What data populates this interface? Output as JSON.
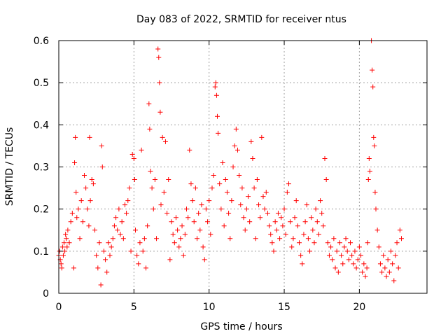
{
  "chart_data": {
    "type": "scatter",
    "title": "Day 083 of 2022, SRMTID for receiver ntus",
    "xlabel": "GPS time / hours",
    "ylabel": "SRMTID / TECUs",
    "xlim": [
      0,
      24.5
    ],
    "ylim": [
      0,
      0.6
    ],
    "x_ticks": [
      0,
      5,
      10,
      15,
      20
    ],
    "y_ticks": [
      0,
      0.1,
      0.2,
      0.3,
      0.4,
      0.5,
      0.6
    ],
    "x_tick_labels": [
      "0",
      "5",
      "10",
      "15",
      "20"
    ],
    "y_tick_labels": [
      "0",
      "0.1",
      "0.2",
      "0.3",
      "0.4",
      "0.5",
      "0.6"
    ],
    "grid": true,
    "marker": "+",
    "color": "#ff0000",
    "series": [
      {
        "name": "SRMTID",
        "points": [
          [
            0.0,
            0.09
          ],
          [
            0.05,
            0.1
          ],
          [
            0.1,
            0.08
          ],
          [
            0.15,
            0.07
          ],
          [
            0.2,
            0.06
          ],
          [
            0.25,
            0.11
          ],
          [
            0.3,
            0.09
          ],
          [
            0.35,
            0.12
          ],
          [
            0.4,
            0.1
          ],
          [
            0.45,
            0.14
          ],
          [
            0.5,
            0.13
          ],
          [
            0.55,
            0.11
          ],
          [
            0.6,
            0.15
          ],
          [
            0.7,
            0.12
          ],
          [
            0.8,
            0.17
          ],
          [
            0.9,
            0.19
          ],
          [
            1.0,
            0.06
          ],
          [
            1.05,
            0.31
          ],
          [
            1.1,
            0.37
          ],
          [
            1.15,
            0.24
          ],
          [
            1.2,
            0.18
          ],
          [
            1.3,
            0.2
          ],
          [
            1.4,
            0.13
          ],
          [
            1.5,
            0.22
          ],
          [
            1.6,
            0.17
          ],
          [
            1.7,
            0.28
          ],
          [
            1.8,
            0.25
          ],
          [
            1.9,
            0.2
          ],
          [
            2.0,
            0.16
          ],
          [
            2.05,
            0.37
          ],
          [
            2.1,
            0.22
          ],
          [
            2.2,
            0.27
          ],
          [
            2.3,
            0.26
          ],
          [
            2.4,
            0.15
          ],
          [
            2.5,
            0.09
          ],
          [
            2.6,
            0.06
          ],
          [
            2.7,
            0.12
          ],
          [
            2.8,
            0.02
          ],
          [
            2.85,
            0.35
          ],
          [
            2.9,
            0.3
          ],
          [
            3.0,
            0.1
          ],
          [
            3.1,
            0.08
          ],
          [
            3.2,
            0.05
          ],
          [
            3.3,
            0.12
          ],
          [
            3.4,
            0.09
          ],
          [
            3.5,
            0.11
          ],
          [
            3.6,
            0.13
          ],
          [
            3.7,
            0.16
          ],
          [
            3.8,
            0.18
          ],
          [
            3.9,
            0.15
          ],
          [
            4.0,
            0.2
          ],
          [
            4.1,
            0.14
          ],
          [
            4.2,
            0.17
          ],
          [
            4.3,
            0.13
          ],
          [
            4.4,
            0.21
          ],
          [
            4.5,
            0.19
          ],
          [
            4.6,
            0.22
          ],
          [
            4.7,
            0.25
          ],
          [
            4.8,
            0.1
          ],
          [
            4.9,
            0.33
          ],
          [
            5.0,
            0.32
          ],
          [
            5.05,
            0.27
          ],
          [
            5.1,
            0.15
          ],
          [
            5.2,
            0.09
          ],
          [
            5.3,
            0.07
          ],
          [
            5.4,
            0.12
          ],
          [
            5.5,
            0.34
          ],
          [
            5.6,
            0.1
          ],
          [
            5.7,
            0.13
          ],
          [
            5.8,
            0.06
          ],
          [
            5.9,
            0.16
          ],
          [
            6.0,
            0.45
          ],
          [
            6.05,
            0.39
          ],
          [
            6.1,
            0.29
          ],
          [
            6.2,
            0.25
          ],
          [
            6.3,
            0.2
          ],
          [
            6.4,
            0.27
          ],
          [
            6.5,
            0.13
          ],
          [
            6.6,
            0.58
          ],
          [
            6.65,
            0.56
          ],
          [
            6.7,
            0.5
          ],
          [
            6.75,
            0.43
          ],
          [
            6.8,
            0.21
          ],
          [
            6.9,
            0.37
          ],
          [
            7.0,
            0.24
          ],
          [
            7.1,
            0.36
          ],
          [
            7.2,
            0.19
          ],
          [
            7.3,
            0.27
          ],
          [
            7.4,
            0.08
          ],
          [
            7.5,
            0.17
          ],
          [
            7.6,
            0.14
          ],
          [
            7.7,
            0.12
          ],
          [
            7.8,
            0.18
          ],
          [
            7.9,
            0.15
          ],
          [
            8.0,
            0.11
          ],
          [
            8.1,
            0.13
          ],
          [
            8.2,
            0.16
          ],
          [
            8.3,
            0.09
          ],
          [
            8.4,
            0.14
          ],
          [
            8.5,
            0.2
          ],
          [
            8.6,
            0.18
          ],
          [
            8.7,
            0.34
          ],
          [
            8.8,
            0.26
          ],
          [
            8.9,
            0.22
          ],
          [
            9.0,
            0.17
          ],
          [
            9.1,
            0.25
          ],
          [
            9.2,
            0.13
          ],
          [
            9.3,
            0.19
          ],
          [
            9.4,
            0.15
          ],
          [
            9.5,
            0.21
          ],
          [
            9.6,
            0.11
          ],
          [
            9.7,
            0.08
          ],
          [
            9.8,
            0.2
          ],
          [
            9.9,
            0.17
          ],
          [
            10.0,
            0.22
          ],
          [
            10.1,
            0.14
          ],
          [
            10.2,
            0.25
          ],
          [
            10.3,
            0.28
          ],
          [
            10.4,
            0.49
          ],
          [
            10.45,
            0.5
          ],
          [
            10.5,
            0.47
          ],
          [
            10.55,
            0.42
          ],
          [
            10.6,
            0.38
          ],
          [
            10.7,
            0.26
          ],
          [
            10.8,
            0.2
          ],
          [
            10.9,
            0.31
          ],
          [
            11.0,
            0.16
          ],
          [
            11.1,
            0.27
          ],
          [
            11.2,
            0.24
          ],
          [
            11.3,
            0.19
          ],
          [
            11.4,
            0.13
          ],
          [
            11.5,
            0.22
          ],
          [
            11.6,
            0.3
          ],
          [
            11.7,
            0.35
          ],
          [
            11.8,
            0.39
          ],
          [
            11.9,
            0.34
          ],
          [
            12.0,
            0.28
          ],
          [
            12.1,
            0.21
          ],
          [
            12.2,
            0.25
          ],
          [
            12.3,
            0.18
          ],
          [
            12.4,
            0.15
          ],
          [
            12.5,
            0.2
          ],
          [
            12.6,
            0.23
          ],
          [
            12.7,
            0.17
          ],
          [
            12.8,
            0.36
          ],
          [
            12.9,
            0.32
          ],
          [
            13.0,
            0.25
          ],
          [
            13.1,
            0.13
          ],
          [
            13.2,
            0.27
          ],
          [
            13.3,
            0.21
          ],
          [
            13.4,
            0.18
          ],
          [
            13.5,
            0.37
          ],
          [
            13.6,
            0.23
          ],
          [
            13.7,
            0.2
          ],
          [
            13.8,
            0.24
          ],
          [
            13.9,
            0.19
          ],
          [
            14.0,
            0.16
          ],
          [
            14.1,
            0.14
          ],
          [
            14.2,
            0.12
          ],
          [
            14.3,
            0.1
          ],
          [
            14.4,
            0.17
          ],
          [
            14.5,
            0.15
          ],
          [
            14.6,
            0.19
          ],
          [
            14.7,
            0.13
          ],
          [
            14.8,
            0.18
          ],
          [
            14.9,
            0.16
          ],
          [
            15.0,
            0.2
          ],
          [
            15.1,
            0.14
          ],
          [
            15.2,
            0.24
          ],
          [
            15.3,
            0.26
          ],
          [
            15.4,
            0.17
          ],
          [
            15.5,
            0.11
          ],
          [
            15.6,
            0.13
          ],
          [
            15.7,
            0.18
          ],
          [
            15.8,
            0.22
          ],
          [
            15.9,
            0.16
          ],
          [
            16.0,
            0.12
          ],
          [
            16.1,
            0.09
          ],
          [
            16.2,
            0.07
          ],
          [
            16.3,
            0.14
          ],
          [
            16.4,
            0.17
          ],
          [
            16.5,
            0.21
          ],
          [
            16.6,
            0.13
          ],
          [
            16.7,
            0.1
          ],
          [
            16.8,
            0.18
          ],
          [
            16.9,
            0.15
          ],
          [
            17.0,
            0.12
          ],
          [
            17.1,
            0.2
          ],
          [
            17.2,
            0.17
          ],
          [
            17.3,
            0.14
          ],
          [
            17.4,
            0.22
          ],
          [
            17.5,
            0.19
          ],
          [
            17.6,
            0.16
          ],
          [
            17.7,
            0.32
          ],
          [
            17.8,
            0.27
          ],
          [
            17.9,
            0.12
          ],
          [
            18.0,
            0.09
          ],
          [
            18.1,
            0.11
          ],
          [
            18.2,
            0.08
          ],
          [
            18.3,
            0.13
          ],
          [
            18.4,
            0.06
          ],
          [
            18.5,
            0.1
          ],
          [
            18.6,
            0.05
          ],
          [
            18.7,
            0.12
          ],
          [
            18.8,
            0.09
          ],
          [
            18.9,
            0.07
          ],
          [
            19.0,
            0.11
          ],
          [
            19.1,
            0.13
          ],
          [
            19.2,
            0.1
          ],
          [
            19.3,
            0.08
          ],
          [
            19.4,
            0.12
          ],
          [
            19.5,
            0.09
          ],
          [
            19.6,
            0.07
          ],
          [
            19.7,
            0.1
          ],
          [
            19.8,
            0.06
          ],
          [
            19.9,
            0.08
          ],
          [
            20.0,
            0.11
          ],
          [
            20.1,
            0.09
          ],
          [
            20.2,
            0.05
          ],
          [
            20.3,
            0.07
          ],
          [
            20.4,
            0.04
          ],
          [
            20.5,
            0.06
          ],
          [
            20.55,
            0.12
          ],
          [
            20.6,
            0.27
          ],
          [
            20.65,
            0.32
          ],
          [
            20.7,
            0.29
          ],
          [
            20.8,
            0.6
          ],
          [
            20.85,
            0.53
          ],
          [
            20.9,
            0.49
          ],
          [
            20.95,
            0.37
          ],
          [
            21.0,
            0.35
          ],
          [
            21.05,
            0.24
          ],
          [
            21.1,
            0.2
          ],
          [
            21.2,
            0.15
          ],
          [
            21.3,
            0.11
          ],
          [
            21.4,
            0.07
          ],
          [
            21.5,
            0.05
          ],
          [
            21.6,
            0.09
          ],
          [
            21.7,
            0.06
          ],
          [
            21.8,
            0.04
          ],
          [
            21.9,
            0.08
          ],
          [
            22.0,
            0.05
          ],
          [
            22.1,
            0.1
          ],
          [
            22.2,
            0.07
          ],
          [
            22.3,
            0.03
          ],
          [
            22.4,
            0.09
          ],
          [
            22.5,
            0.12
          ],
          [
            22.6,
            0.06
          ],
          [
            22.7,
            0.15
          ],
          [
            22.8,
            0.13
          ]
        ]
      }
    ]
  }
}
